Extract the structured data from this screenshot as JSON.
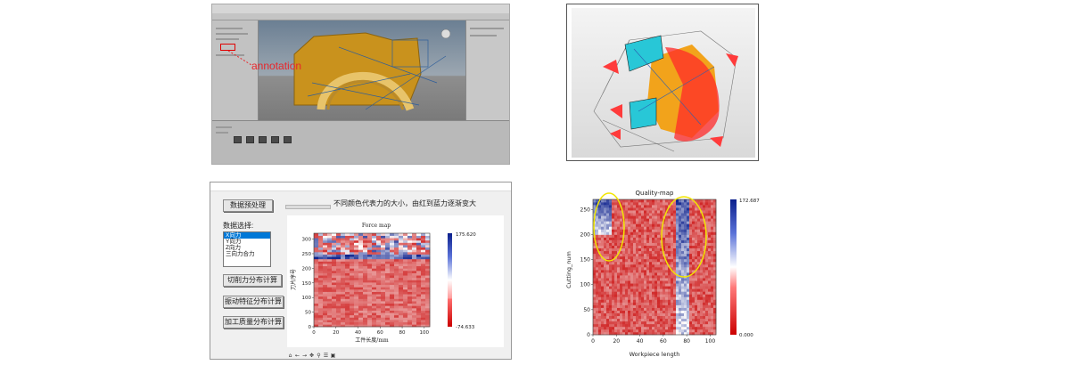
{
  "panel_a": {
    "annotation_label": "annotation",
    "annotation_color": "#e8262b"
  },
  "panel_c": {
    "window_title": "",
    "header_text": "不同颜色代表力的大小，由红到蓝力逐渐变大",
    "buttons": {
      "preprocess": "数据预处理",
      "cut_force": "切削力分布计算",
      "vibration": "振动特征分布计算",
      "quality": "加工质量分布计算"
    },
    "select_label": "数据选择:",
    "select_options": [
      {
        "label": "X向力",
        "selected": true
      },
      {
        "label": "Y向力",
        "selected": false
      },
      {
        "label": "Z向力",
        "selected": false
      },
      {
        "label": "三向力合力",
        "selected": false
      }
    ],
    "chart_title": "Force map",
    "xlabel": "工件长度/mm",
    "ylabel": "刀片序号",
    "colorbar_max": "175.620",
    "colorbar_min": "-74.633",
    "xticks": [
      "0",
      "20",
      "40",
      "60",
      "80",
      "100"
    ],
    "yticks": [
      "0",
      "50",
      "100",
      "150",
      "200",
      "250",
      "300"
    ],
    "toolbar_icons": [
      "home-icon",
      "back-icon",
      "forward-icon",
      "pan-icon",
      "zoom-icon",
      "config-icon",
      "save-icon"
    ]
  },
  "panel_d": {
    "chart_title": "Quality-map",
    "xlabel": "Workpiece length",
    "ylabel": "Cutting_num",
    "colorbar_max": "172.687",
    "colorbar_min": "0.000",
    "xticks": [
      "0",
      "20",
      "40",
      "60",
      "80",
      "100"
    ],
    "yticks": [
      "0",
      "50",
      "100",
      "150",
      "200",
      "250"
    ],
    "highlight_color": "#f2e600"
  },
  "chart_data": [
    {
      "type": "heatmap",
      "title": "Force map",
      "xlabel": "工件长度/mm",
      "ylabel": "刀片序号",
      "xlim": [
        0,
        105
      ],
      "ylim": [
        0,
        320
      ],
      "colorbar": {
        "min": -74.633,
        "max": 175.62,
        "colors": [
          "#cc0000",
          "#ffffff",
          "#0b1f8c"
        ]
      },
      "bands": [
        {
          "y_range": [
            0,
            230
          ],
          "description_level": "low"
        },
        {
          "y_range": [
            230,
            250
          ],
          "description_level": "high"
        },
        {
          "y_range": [
            250,
            320
          ],
          "description_level": "mixed"
        }
      ]
    },
    {
      "type": "heatmap",
      "title": "Quality-map",
      "xlabel": "Workpiece length",
      "ylabel": "Cutting_num",
      "xlim": [
        0,
        105
      ],
      "ylim": [
        0,
        270
      ],
      "colorbar": {
        "min": 0.0,
        "max": 172.687,
        "colors": [
          "#cc0000",
          "#ffffff",
          "#0b1f8c"
        ]
      },
      "high_regions": [
        {
          "x_range": [
            0,
            15
          ],
          "y_range": [
            200,
            270
          ]
        },
        {
          "x_range": [
            70,
            82
          ],
          "y_range": [
            0,
            270
          ]
        }
      ]
    }
  ]
}
